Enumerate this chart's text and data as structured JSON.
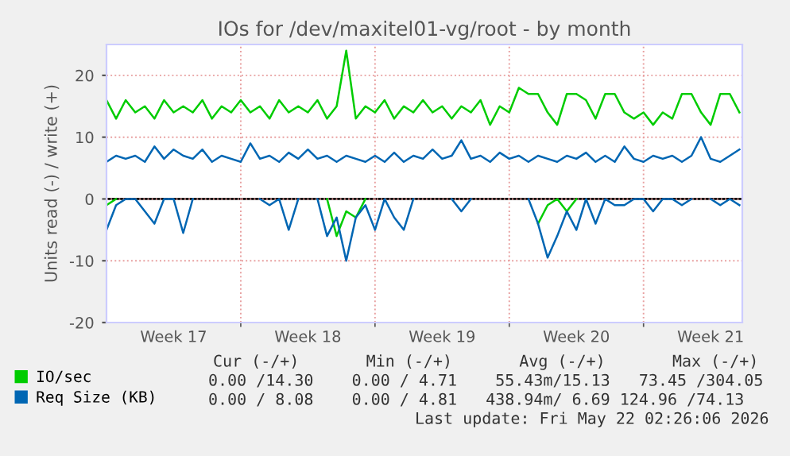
{
  "chart_data": {
    "type": "line",
    "title": "IOs for /dev/maxitel01-vg/root - by month",
    "ylabel": "Units read (-) / write (+)",
    "categories": [
      null,
      null,
      null,
      null,
      null,
      null,
      null,
      "Week 17",
      null,
      null,
      null,
      null,
      null,
      null,
      null,
      null,
      null,
      null,
      null,
      null,
      null,
      "Week 18",
      null,
      null,
      null,
      null,
      null,
      null,
      null,
      null,
      null,
      null,
      null,
      null,
      null,
      "Week 19",
      null,
      null,
      null,
      null,
      null,
      null,
      null,
      null,
      null,
      null,
      null,
      null,
      null,
      "Week 20",
      null,
      null,
      null,
      null,
      null,
      null,
      null,
      null,
      null,
      null,
      null,
      null,
      null,
      "Week 21",
      null,
      null,
      null
    ],
    "ylim": [
      -20,
      25
    ],
    "yticks": [
      -20,
      -10,
      0,
      10,
      20
    ],
    "grid": true,
    "legend": "bottom",
    "series": [
      {
        "name": "IO/sec",
        "color": "#00cc00",
        "values": [
          16,
          13,
          16,
          14,
          15,
          13,
          16,
          14,
          15,
          14,
          16,
          13,
          15,
          14,
          16,
          14,
          15,
          13,
          16,
          14,
          15,
          14,
          16,
          13,
          15,
          24,
          13,
          15,
          14,
          16,
          13,
          15,
          14,
          16,
          14,
          15,
          13,
          15,
          14,
          16,
          12,
          15,
          14,
          18,
          17,
          17,
          14,
          12,
          17,
          17,
          16,
          13,
          17,
          17,
          14,
          13,
          14,
          12,
          14,
          13,
          17,
          17,
          14,
          12,
          17,
          17,
          14
        ]
      },
      {
        "color": "#00cc00",
        "values": [
          -1,
          0,
          null,
          null,
          null,
          null,
          null,
          null,
          null,
          null,
          null,
          null,
          null,
          null,
          null,
          null,
          null,
          null,
          null,
          null,
          null,
          null,
          null,
          0,
          -6,
          -2,
          -3,
          0,
          null,
          null,
          null,
          null,
          null,
          null,
          null,
          null,
          null,
          null,
          null,
          null,
          null,
          null,
          null,
          null,
          null,
          -4,
          -1,
          0,
          -2,
          0,
          null,
          null,
          null,
          null,
          null,
          null,
          null,
          null,
          null,
          null,
          null,
          null,
          null,
          null,
          null,
          null,
          null
        ]
      },
      {
        "name": "Req Size (KB)",
        "color": "#0066b3",
        "values": [
          6,
          7,
          6.5,
          7,
          6,
          8.5,
          6.5,
          8,
          7,
          6.5,
          8,
          6,
          7,
          6.5,
          6,
          9,
          6.5,
          7,
          6,
          7.5,
          6.5,
          8,
          6.5,
          7,
          6,
          7,
          6.5,
          6,
          7,
          6,
          7.5,
          6,
          7,
          6.5,
          8,
          6.5,
          7,
          9.5,
          6.5,
          7,
          6,
          7.5,
          6.5,
          7,
          6,
          7,
          6.5,
          6,
          7,
          6.5,
          7.5,
          6,
          7,
          6,
          8.5,
          6.5,
          6,
          7,
          6.5,
          7,
          6,
          7,
          10,
          6.5,
          6,
          7,
          8
        ]
      },
      {
        "color": "#0066b3",
        "values": [
          -5,
          -1,
          0,
          0,
          -2,
          -4,
          0,
          0,
          -5.5,
          0,
          null,
          null,
          null,
          null,
          null,
          null,
          0,
          -1,
          0,
          -5,
          0,
          null,
          0,
          -6,
          -3,
          -10,
          -3,
          -1,
          -5,
          0,
          -3,
          -5,
          0,
          null,
          null,
          null,
          0,
          -2,
          0,
          null,
          null,
          null,
          null,
          null,
          0,
          -4,
          -9.5,
          -6,
          -2,
          -5,
          0,
          -4,
          0,
          -1,
          -1,
          0,
          0,
          -2,
          0,
          0,
          -1,
          0,
          null,
          0,
          -1,
          0,
          -1
        ]
      }
    ],
    "ref_lines": [
      {
        "axis": "y",
        "value": 0,
        "color": "#000000"
      }
    ],
    "annotations": [
      "Cur (-/+)       Min (-/+)       Avg (-/+)       Max (-/+)",
      "0.00 /14.30    0.00 / 4.71    55.43m/15.13   73.45 /304.05",
      "0.00 / 8.08    0.00 / 4.81   438.94m/ 6.69 124.96 /74.13",
      "Last update: Fri May 22 02:26:06 2026"
    ]
  }
}
